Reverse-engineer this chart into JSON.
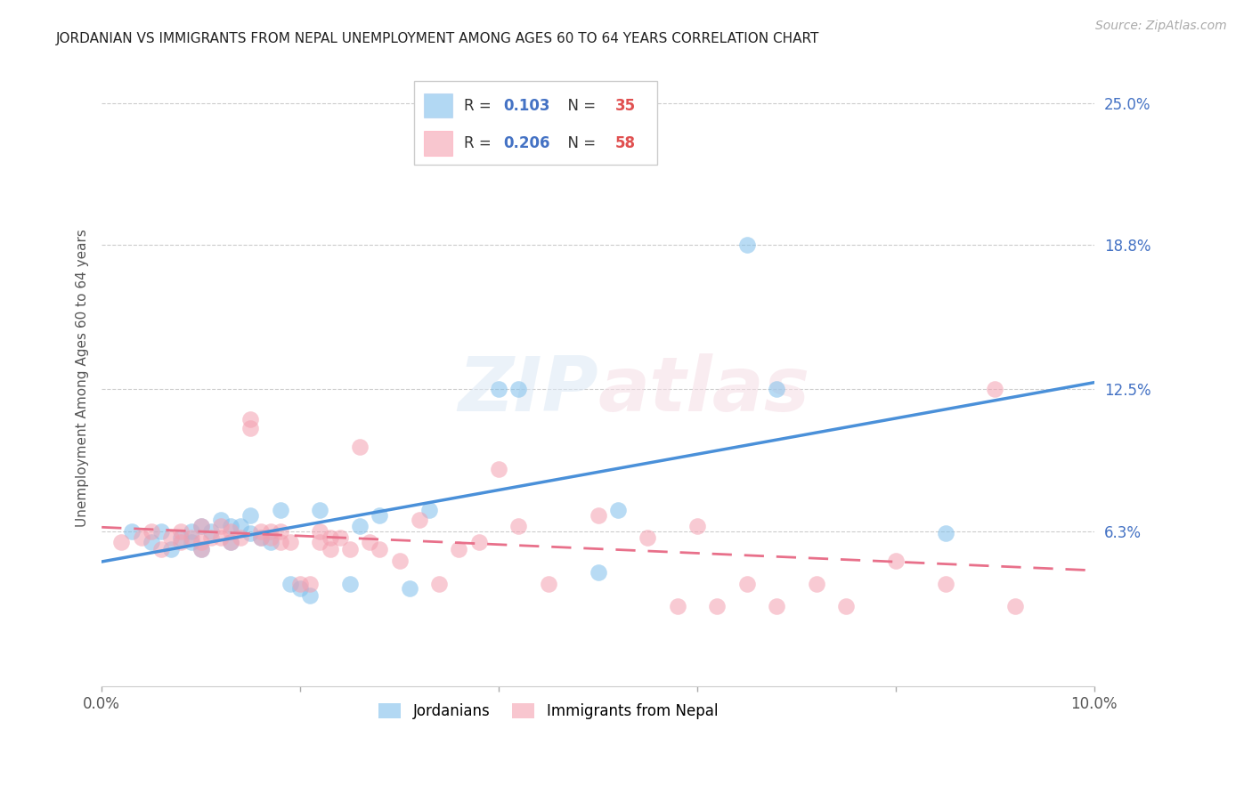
{
  "title": "JORDANIAN VS IMMIGRANTS FROM NEPAL UNEMPLOYMENT AMONG AGES 60 TO 64 YEARS CORRELATION CHART",
  "source": "Source: ZipAtlas.com",
  "ylabel": "Unemployment Among Ages 60 to 64 years",
  "xlim": [
    0.0,
    0.1
  ],
  "ylim": [
    -0.005,
    0.265
  ],
  "xticks": [
    0.0,
    0.02,
    0.04,
    0.06,
    0.08,
    0.1
  ],
  "xtick_labels": [
    "0.0%",
    "",
    "",
    "",
    "",
    "10.0%"
  ],
  "ytick_labels_right": [
    "25.0%",
    "18.8%",
    "12.5%",
    "6.3%"
  ],
  "ytick_vals_right": [
    0.25,
    0.188,
    0.125,
    0.063
  ],
  "gridline_color": "#cccccc",
  "background_color": "#ffffff",
  "jordan_color": "#7fbfeb",
  "nepal_color": "#f4a0b0",
  "jordan_line_color": "#4a90d9",
  "nepal_line_color": "#e8708a",
  "jordan_R": "0.103",
  "jordan_N": "35",
  "nepal_R": "0.206",
  "nepal_N": "58",
  "jordan_label": "Jordanians",
  "nepal_label": "Immigrants from Nepal",
  "watermark": "ZIPatlas",
  "jordan_x": [
    0.003,
    0.005,
    0.006,
    0.007,
    0.008,
    0.009,
    0.009,
    0.01,
    0.01,
    0.011,
    0.012,
    0.013,
    0.013,
    0.014,
    0.015,
    0.015,
    0.016,
    0.017,
    0.018,
    0.019,
    0.02,
    0.021,
    0.022,
    0.025,
    0.026,
    0.028,
    0.031,
    0.033,
    0.04,
    0.042,
    0.05,
    0.052,
    0.065,
    0.068,
    0.085
  ],
  "jordan_y": [
    0.063,
    0.058,
    0.063,
    0.055,
    0.06,
    0.063,
    0.058,
    0.065,
    0.055,
    0.063,
    0.068,
    0.058,
    0.065,
    0.065,
    0.062,
    0.07,
    0.06,
    0.058,
    0.072,
    0.04,
    0.038,
    0.035,
    0.072,
    0.04,
    0.065,
    0.07,
    0.038,
    0.072,
    0.125,
    0.125,
    0.045,
    0.072,
    0.188,
    0.125,
    0.062
  ],
  "nepal_x": [
    0.002,
    0.004,
    0.005,
    0.006,
    0.007,
    0.008,
    0.008,
    0.009,
    0.01,
    0.01,
    0.01,
    0.011,
    0.012,
    0.012,
    0.013,
    0.013,
    0.014,
    0.015,
    0.015,
    0.016,
    0.016,
    0.017,
    0.017,
    0.018,
    0.018,
    0.019,
    0.02,
    0.021,
    0.022,
    0.022,
    0.023,
    0.023,
    0.024,
    0.025,
    0.026,
    0.027,
    0.028,
    0.03,
    0.032,
    0.034,
    0.036,
    0.038,
    0.04,
    0.042,
    0.045,
    0.05,
    0.055,
    0.058,
    0.06,
    0.062,
    0.065,
    0.068,
    0.072,
    0.075,
    0.08,
    0.085,
    0.09,
    0.092
  ],
  "nepal_y": [
    0.058,
    0.06,
    0.063,
    0.055,
    0.06,
    0.058,
    0.063,
    0.06,
    0.055,
    0.058,
    0.065,
    0.06,
    0.06,
    0.065,
    0.058,
    0.063,
    0.06,
    0.112,
    0.108,
    0.06,
    0.063,
    0.06,
    0.063,
    0.058,
    0.063,
    0.058,
    0.04,
    0.04,
    0.063,
    0.058,
    0.06,
    0.055,
    0.06,
    0.055,
    0.1,
    0.058,
    0.055,
    0.05,
    0.068,
    0.04,
    0.055,
    0.058,
    0.09,
    0.065,
    0.04,
    0.07,
    0.06,
    0.03,
    0.065,
    0.03,
    0.04,
    0.03,
    0.04,
    0.03,
    0.05,
    0.04,
    0.125,
    0.03
  ]
}
